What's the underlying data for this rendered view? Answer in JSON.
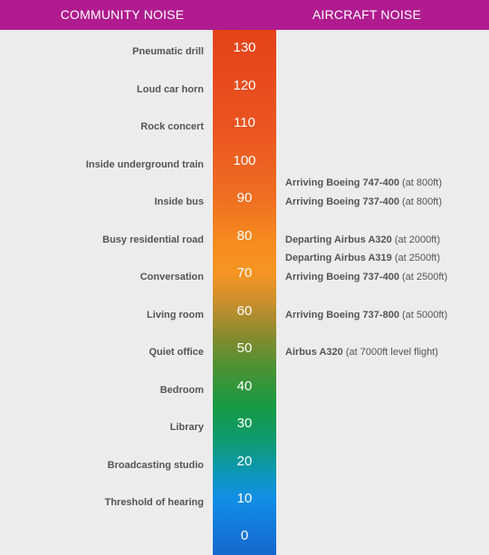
{
  "header": {
    "left_title": "COMMUNITY NOISE",
    "right_title": "AIRCRAFT NOISE"
  },
  "colors": {
    "header_bg": "#b01b8f",
    "scale_top": "#e4421a",
    "scale_middle": "#f79521",
    "scale_green": "#159a45",
    "scale_bottom": "#1568cc"
  },
  "levels": [
    "130",
    "120",
    "110",
    "100",
    "90",
    "80",
    "70",
    "60",
    "50",
    "40",
    "30",
    "20",
    "10",
    "0"
  ],
  "community": [
    "Pneumatic drill",
    "Loud car horn",
    "Rock concert",
    "Inside underground train",
    "Inside bus",
    "Busy residential road",
    "Conversation",
    "Living room",
    "Quiet office",
    "Bedroom",
    "Library",
    "Broadcasting studio",
    "Threshold of hearing"
  ],
  "aircraft": [
    {
      "name": "Arriving Boeing 747-400",
      "detail": "(at 800ft)"
    },
    {
      "name": "Arriving Boeing 737-400",
      "detail": "(at 800ft)"
    },
    {
      "name": "Departing Airbus A320",
      "detail": "(at 2000ft)"
    },
    {
      "name": "Departing Airbus A319",
      "detail": "(at 2500ft)"
    },
    {
      "name": "Arriving Boeing 737-400",
      "detail": "(at 2500ft)"
    },
    {
      "name": "Arriving Boeing 737-800",
      "detail": "(at 5000ft)"
    },
    {
      "name": "Airbus A320",
      "detail": "(at 7000ft level flight)"
    }
  ]
}
